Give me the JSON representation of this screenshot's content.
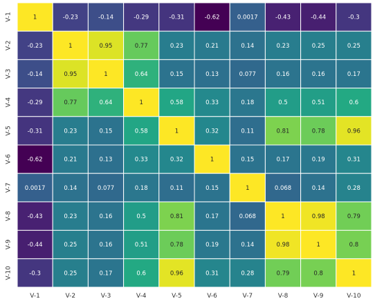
{
  "chart_data": {
    "type": "heatmap",
    "title": "",
    "xlabel": "",
    "ylabel": "",
    "colormap": "viridis",
    "vmin": -0.62,
    "vmax": 1,
    "gridlines": "white",
    "legend": "none",
    "x_labels": [
      "V-1",
      "V-2",
      "V-3",
      "V-4",
      "V-5",
      "V-6",
      "V-7",
      "V-8",
      "V-9",
      "V-10"
    ],
    "y_labels": [
      "V-1",
      "V-2",
      "V-3",
      "V-4",
      "V-5",
      "V-6",
      "V-7",
      "V-8",
      "V-9",
      "V-10"
    ],
    "values": [
      [
        1,
        -0.23,
        -0.14,
        -0.29,
        -0.31,
        -0.62,
        0.0017,
        -0.43,
        -0.44,
        -0.3
      ],
      [
        -0.23,
        1,
        0.95,
        0.77,
        0.23,
        0.21,
        0.14,
        0.23,
        0.25,
        0.25
      ],
      [
        -0.14,
        0.95,
        1,
        0.64,
        0.15,
        0.13,
        0.077,
        0.16,
        0.16,
        0.17
      ],
      [
        -0.29,
        0.77,
        0.64,
        1,
        0.58,
        0.33,
        0.18,
        0.5,
        0.51,
        0.6
      ],
      [
        -0.31,
        0.23,
        0.15,
        0.58,
        1,
        0.32,
        0.11,
        0.81,
        0.78,
        0.96
      ],
      [
        -0.62,
        0.21,
        0.13,
        0.33,
        0.32,
        1,
        0.15,
        0.17,
        0.19,
        0.31
      ],
      [
        0.0017,
        0.14,
        0.077,
        0.18,
        0.11,
        0.15,
        1,
        0.068,
        0.14,
        0.28
      ],
      [
        -0.43,
        0.23,
        0.16,
        0.5,
        0.81,
        0.17,
        0.068,
        1,
        0.98,
        0.79
      ],
      [
        -0.44,
        0.25,
        0.16,
        0.51,
        0.78,
        0.19,
        0.14,
        0.98,
        1,
        0.8
      ],
      [
        -0.3,
        0.25,
        0.17,
        0.6,
        0.96,
        0.31,
        0.28,
        0.79,
        0.8,
        1
      ]
    ],
    "cell_labels": [
      [
        "1",
        "-0.23",
        "-0.14",
        "-0.29",
        "-0.31",
        "-0.62",
        "0.0017",
        "-0.43",
        "-0.44",
        "-0.3"
      ],
      [
        "-0.23",
        "1",
        "0.95",
        "0.77",
        "0.23",
        "0.21",
        "0.14",
        "0.23",
        "0.25",
        "0.25"
      ],
      [
        "-0.14",
        "0.95",
        "1",
        "0.64",
        "0.15",
        "0.13",
        "0.077",
        "0.16",
        "0.16",
        "0.17"
      ],
      [
        "-0.29",
        "0.77",
        "0.64",
        "1",
        "0.58",
        "0.33",
        "0.18",
        "0.5",
        "0.51",
        "0.6"
      ],
      [
        "-0.31",
        "0.23",
        "0.15",
        "0.58",
        "1",
        "0.32",
        "0.11",
        "0.81",
        "0.78",
        "0.96"
      ],
      [
        "-0.62",
        "0.21",
        "0.13",
        "0.33",
        "0.32",
        "1",
        "0.15",
        "0.17",
        "0.19",
        "0.31"
      ],
      [
        "0.0017",
        "0.14",
        "0.077",
        "0.18",
        "0.11",
        "0.15",
        "1",
        "0.068",
        "0.14",
        "0.28"
      ],
      [
        "-0.43",
        "0.23",
        "0.16",
        "0.5",
        "0.81",
        "0.17",
        "0.068",
        "1",
        "0.98",
        "0.79"
      ],
      [
        "-0.44",
        "0.25",
        "0.16",
        "0.51",
        "0.78",
        "0.19",
        "0.14",
        "0.98",
        "1",
        "0.8"
      ],
      [
        "-0.3",
        "0.25",
        "0.17",
        "0.6",
        "0.96",
        "0.31",
        "0.28",
        "0.79",
        "0.8",
        "1"
      ]
    ]
  }
}
